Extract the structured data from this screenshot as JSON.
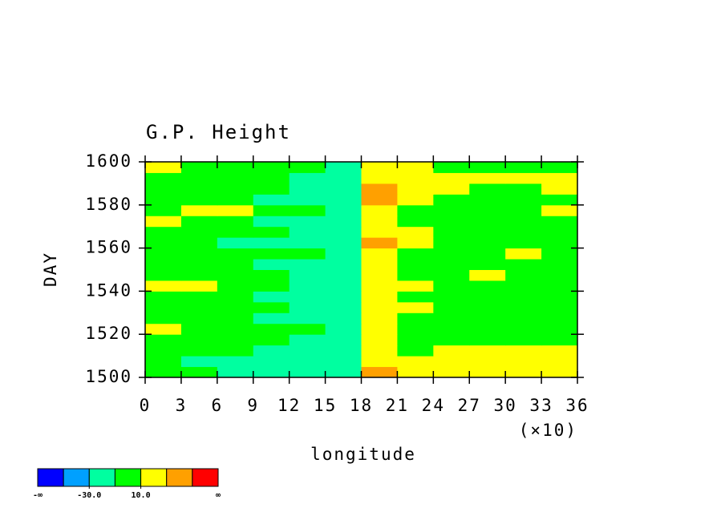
{
  "chart_data": {
    "type": "heatmap",
    "title": "G.P. Height",
    "xlabel": "longitude",
    "ylabel": "DAY",
    "x_unit_label": "(×10)",
    "xlim": [
      0,
      36
    ],
    "xticks": [
      0,
      3,
      6,
      9,
      12,
      15,
      18,
      21,
      24,
      27,
      30,
      33,
      36
    ],
    "ylim": [
      1500,
      1600
    ],
    "yticks": [
      1500,
      1520,
      1540,
      1560,
      1580,
      1600
    ],
    "x_edges": [
      0,
      3,
      6,
      9,
      12,
      15,
      18,
      21,
      24,
      27,
      30,
      33,
      36
    ],
    "y_edges": [
      1500,
      1505,
      1510,
      1515,
      1520,
      1525,
      1530,
      1535,
      1540,
      1545,
      1550,
      1555,
      1560,
      1565,
      1570,
      1575,
      1580,
      1585,
      1590,
      1595,
      1600
    ],
    "z": [
      [
        0,
        -5,
        -12,
        -15,
        -20,
        -25,
        35,
        25,
        15,
        20,
        22,
        15
      ],
      [
        -5,
        -12,
        -15,
        -18,
        -25,
        -30,
        25,
        15,
        18,
        25,
        28,
        22
      ],
      [
        2,
        -10,
        -8,
        -15,
        -20,
        -25,
        20,
        5,
        12,
        22,
        25,
        20
      ],
      [
        5,
        0,
        -5,
        -8,
        -12,
        -20,
        22,
        8,
        5,
        0,
        5,
        2
      ],
      [
        12,
        -5,
        8,
        -10,
        -5,
        -15,
        18,
        2,
        -5,
        0,
        8,
        -2
      ],
      [
        0,
        -8,
        5,
        -12,
        -15,
        -28,
        15,
        5,
        0,
        -5,
        2,
        0
      ],
      [
        5,
        2,
        -5,
        -10,
        -15,
        -20,
        20,
        10,
        -3,
        0,
        5,
        -5
      ],
      [
        8,
        5,
        0,
        -12,
        -18,
        -25,
        25,
        8,
        5,
        2,
        0,
        5
      ],
      [
        15,
        12,
        5,
        -5,
        -15,
        -20,
        18,
        12,
        8,
        0,
        -5,
        2
      ],
      [
        5,
        0,
        -5,
        -10,
        -12,
        -18,
        15,
        5,
        2,
        12,
        5,
        0
      ],
      [
        0,
        -5,
        -8,
        -12,
        -15,
        -20,
        20,
        5,
        0,
        -5,
        2,
        -3
      ],
      [
        8,
        5,
        0,
        -5,
        -10,
        -15,
        25,
        8,
        5,
        0,
        12,
        5
      ],
      [
        -5,
        -8,
        -12,
        -15,
        -18,
        -22,
        30,
        12,
        5,
        2,
        0,
        5
      ],
      [
        5,
        -3,
        -5,
        -10,
        -15,
        -18,
        22,
        10,
        5,
        0,
        -5,
        -8
      ],
      [
        10,
        5,
        -5,
        -12,
        -15,
        -20,
        25,
        5,
        0,
        -5,
        2,
        5
      ],
      [
        5,
        15,
        12,
        0,
        -10,
        -15,
        18,
        5,
        8,
        2,
        5,
        12
      ],
      [
        0,
        -5,
        -8,
        -12,
        -15,
        -20,
        30,
        15,
        5,
        0,
        5,
        8
      ],
      [
        5,
        8,
        0,
        -5,
        -12,
        -18,
        40,
        25,
        15,
        5,
        8,
        10
      ],
      [
        2,
        -5,
        -8,
        -10,
        -12,
        -15,
        25,
        15,
        10,
        18,
        22,
        12
      ],
      [
        12,
        5,
        0,
        -5,
        -10,
        -25,
        18,
        10,
        8,
        5,
        -5,
        -10
      ]
    ],
    "colorbar": {
      "levels": [
        -50,
        -30,
        -10,
        10,
        30,
        50
      ],
      "colors": [
        "#0000ff",
        "#00a0ff",
        "#00ffa0",
        "#00ff00",
        "#ffff00",
        "#ffa000",
        "#ff0000"
      ],
      "ticks": [
        {
          "value": -30,
          "label": "-30.0"
        },
        {
          "value": 10,
          "label": "10.0"
        }
      ],
      "min_label": "-∞",
      "max_label": "∞"
    }
  }
}
